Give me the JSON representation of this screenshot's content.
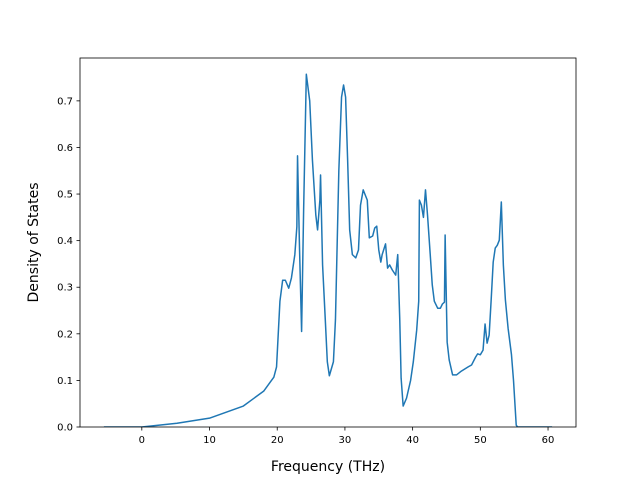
{
  "chart_data": {
    "type": "line",
    "xlabel": "Frequency (THz)",
    "ylabel": "Density of States",
    "xlim": [
      -9.13,
      64.13
    ],
    "ylim": [
      0,
      0.792
    ],
    "xticks": [
      0,
      10,
      20,
      30,
      40,
      50,
      60
    ],
    "yticks": [
      {
        "value": 0,
        "label": "0.0"
      },
      0.1,
      0.2,
      0.3,
      0.4,
      0.5,
      0.6,
      0.7
    ],
    "series": [
      {
        "color": "#1f77b4",
        "x": [
          -5.6,
          0,
          5.2,
          10,
          15,
          18,
          19.5,
          19.9,
          20.4,
          20.8,
          21.2,
          21.7,
          22.1,
          22.6,
          22.9,
          23.0,
          23.3,
          23.6,
          23.9,
          24.3,
          24.8,
          25.2,
          25.7,
          25.96,
          26.3,
          26.4,
          26.7,
          27.1,
          27.4,
          27.7,
          28.3,
          28.6,
          29.1,
          29.5,
          29.8,
          30.1,
          30.4,
          30.7,
          31.1,
          31.6,
          32.0,
          32.3,
          32.7,
          33.0,
          33.3,
          33.6,
          34.1,
          34.4,
          34.7,
          35.0,
          35.3,
          35.5,
          36.0,
          36.3,
          36.6,
          37.0,
          37.5,
          37.8,
          38.1,
          38.3,
          38.6,
          39.1,
          39.7,
          40.1,
          40.6,
          40.9,
          41.0,
          41.3,
          41.6,
          41.9,
          42.2,
          42.6,
          42.9,
          43.2,
          43.7,
          44.1,
          44.4,
          44.7,
          44.8,
          45.1,
          45.4,
          45.9,
          46.5,
          47.2,
          48.2,
          48.7,
          49.3,
          49.6,
          50.0,
          50.4,
          50.7,
          51.0,
          51.3,
          51.6,
          51.9,
          52.2,
          52.5,
          52.8,
          53.1,
          53.4,
          53.7,
          54.1,
          54.6,
          54.9,
          55.3,
          55.5,
          60.6
        ],
        "values": [
          0,
          0,
          0.008,
          0.019,
          0.045,
          0.077,
          0.107,
          0.129,
          0.27,
          0.315,
          0.315,
          0.298,
          0.32,
          0.37,
          0.43,
          0.582,
          0.38,
          0.205,
          0.466,
          0.757,
          0.7,
          0.573,
          0.455,
          0.423,
          0.487,
          0.541,
          0.348,
          0.23,
          0.14,
          0.11,
          0.14,
          0.23,
          0.55,
          0.708,
          0.734,
          0.708,
          0.573,
          0.423,
          0.37,
          0.363,
          0.38,
          0.476,
          0.509,
          0.498,
          0.487,
          0.406,
          0.41,
          0.427,
          0.431,
          0.38,
          0.354,
          0.37,
          0.393,
          0.341,
          0.348,
          0.337,
          0.326,
          0.37,
          0.23,
          0.105,
          0.045,
          0.062,
          0.1,
          0.14,
          0.208,
          0.27,
          0.487,
          0.476,
          0.45,
          0.509,
          0.455,
          0.37,
          0.305,
          0.27,
          0.255,
          0.255,
          0.264,
          0.268,
          0.412,
          0.182,
          0.144,
          0.112,
          0.112,
          0.12,
          0.129,
          0.133,
          0.15,
          0.157,
          0.155,
          0.165,
          0.221,
          0.18,
          0.197,
          0.273,
          0.354,
          0.384,
          0.39,
          0.401,
          0.483,
          0.348,
          0.273,
          0.212,
          0.155,
          0.1,
          0.004,
          0,
          0
        ]
      }
    ]
  }
}
